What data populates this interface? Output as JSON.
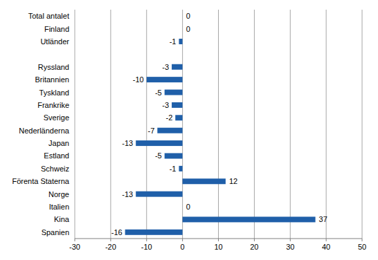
{
  "chart_data": {
    "type": "bar",
    "orientation": "horizontal",
    "categories": [
      "Total antalet",
      "Finland",
      "Utländer",
      null,
      "Ryssland",
      "Britannien",
      "Tyskland",
      "Frankrike",
      "Sverige",
      "Nederländerna",
      "Japan",
      "Estland",
      "Schweiz",
      "Förenta Staterna",
      "Norge",
      "Italien",
      "Kina",
      "Spanien"
    ],
    "values": [
      0,
      0,
      -1,
      null,
      -3,
      -10,
      -5,
      -3,
      -2,
      -7,
      -13,
      -5,
      -1,
      12,
      -13,
      0,
      37,
      -16
    ],
    "color": "#1f5fa9",
    "xlim": [
      -30,
      50
    ],
    "xticks": [
      -30,
      -20,
      -10,
      0,
      10,
      20,
      30,
      40,
      50
    ],
    "grid": true,
    "data_labels": true
  }
}
